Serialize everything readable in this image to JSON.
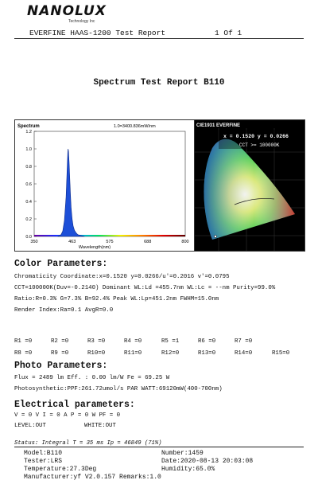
{
  "header": {
    "logo": "NANOLUX",
    "logo_sub": "Technology Inc",
    "report_title": "EVERFINE HAAS-1200 Test Report",
    "page": "1 Of 1"
  },
  "title": "Spectrum Test Report B110",
  "spectrum": {
    "corner_label": "Spectrum",
    "peak_note": "1.0=3400.836mW/nm",
    "xlabel": "Wavelength(nm)",
    "y_ticks": [
      "1.2",
      "1.0",
      "0.8",
      "0.6",
      "0.4",
      "0.2",
      "0.0"
    ],
    "x_ticks": [
      "350",
      "463",
      "575",
      "688",
      "800"
    ]
  },
  "chart_data": {
    "type": "line",
    "title": "Spectrum",
    "xlabel": "Wavelength(nm)",
    "ylabel": "",
    "xlim": [
      350,
      800
    ],
    "ylim": [
      0,
      1.2
    ],
    "x": [
      420,
      430,
      435,
      440,
      445,
      448,
      450,
      451,
      452,
      454,
      456,
      458,
      460,
      463,
      466,
      470,
      475,
      480,
      490,
      500
    ],
    "series": [
      {
        "values": [
          0.0,
          0.02,
          0.06,
          0.18,
          0.45,
          0.75,
          0.95,
          1.0,
          0.98,
          0.85,
          0.66,
          0.48,
          0.33,
          0.2,
          0.12,
          0.07,
          0.04,
          0.02,
          0.01,
          0.0
        ]
      }
    ],
    "grid": false,
    "legend": "none"
  },
  "cie": {
    "header": "CIE1931 EVERFINE",
    "coord": "x = 0.1520  y = 0.0266",
    "cct": "CCT >= 100000K"
  },
  "color_params": {
    "heading": "Color Parameters:",
    "lines": [
      "Chromaticity Coordinate:x=0.1520  y=0.0266/u'=0.2016 v'=0.0795",
      "CCT=100000K(Duv=-0.2140) Dominant WL:Ld =455.7nm WL:Lc = --nm Purity=99.0%",
      "Ratio:R=0.3% G=7.3% B=92.4%  Peak WL:Lp=451.2nm  FWHM=15.0nm",
      "Render Index:Ra=0.1   AvgR=0.0"
    ]
  },
  "render_indices": {
    "row1": [
      "R1 =0",
      "R2 =0",
      "R3 =0",
      "R4 =0",
      "R5 =1",
      "R6 =0",
      "R7 =0"
    ],
    "row2": [
      "R8 =0",
      "R9 =0",
      "R10=0",
      "R11=0",
      "R12=0",
      "R13=0",
      "R14=0",
      "R15=0"
    ]
  },
  "photo_params": {
    "heading": "Photo Parameters:",
    "lines": [
      "Flux  = 2489 lm   Eff. : 0.00 lm/W  Fe  = 69.25 W",
      "Photosynthetic:PPF:261.72umol/s PAR WATT:69120mW(400-700nm)"
    ]
  },
  "electrical_params": {
    "heading": "Electrical parameters:",
    "line1": "V = 0 V     I = 0 A    P = 0 W PF = 0",
    "level": "LEVEL:OUT",
    "white": "WHITE:OUT"
  },
  "footer": {
    "status": "Status:  Integral T = 35 ms  Ip = 46849 (71%)",
    "model": "Model:B110",
    "number": "Number:1459",
    "tester": "Tester:LRS",
    "date": "Date:2020-08-13 20:03:08",
    "temperature": "Temperature:27.3Deg",
    "humidity": "Humidity:65.0%",
    "manufacturer": "Manufacturer:yf V2.0.157  Remarks:1.0"
  },
  "colors": {
    "spectrum_fill": "#1d4fd8",
    "spectrum_edge": "#0b2a8a",
    "cie_background": "#000000"
  }
}
